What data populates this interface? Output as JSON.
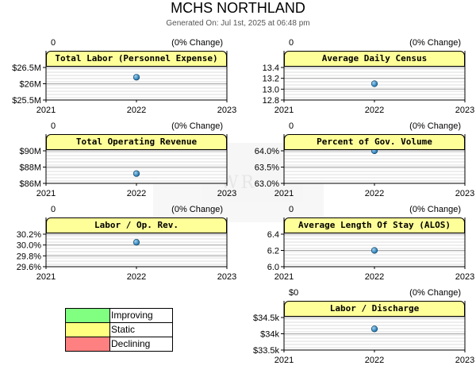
{
  "header": {
    "title": "MCHS NORTHLAND",
    "subtitle": "Generated On: Jul 1st, 2025 at 06:48 pm"
  },
  "watermark": {
    "text": "WR"
  },
  "colors": {
    "title_fill": "#ffff99",
    "point": "#1a6fa8",
    "grid": "#aaaaaa",
    "improving": "#80ff80",
    "static": "#ffff80",
    "declining": "#ff8080"
  },
  "legend": [
    {
      "label": "Improving",
      "color": "#80ff80"
    },
    {
      "label": "Static",
      "color": "#ffff80"
    },
    {
      "label": "Declining",
      "color": "#ff8080"
    }
  ],
  "chart_data": [
    {
      "type": "scatter",
      "title": "Total Labor (Personnel Expense)",
      "change_value": "0",
      "change_text": "(0% Change)",
      "x_ticks": [
        "2021",
        "2022",
        "2023"
      ],
      "x": [
        2022
      ],
      "y": [
        26200000
      ],
      "ylim": [
        25500000,
        26500000
      ],
      "y_ticks": [
        25500000,
        26000000,
        26500000
      ],
      "y_tick_labels": [
        "$25.5M",
        "$26M",
        "$26.5M"
      ],
      "grid": true,
      "status": "Static"
    },
    {
      "type": "scatter",
      "title": "Average Daily Census",
      "change_value": "0",
      "change_text": "(0% Change)",
      "x_ticks": [
        "2021",
        "2022",
        "2023"
      ],
      "x": [
        2022
      ],
      "y": [
        13.1
      ],
      "ylim": [
        12.8,
        13.4
      ],
      "y_ticks": [
        12.8,
        13.0,
        13.2,
        13.4
      ],
      "y_tick_labels": [
        "12.8",
        "13.0",
        "13.2",
        "13.4"
      ],
      "grid": true,
      "status": "Static"
    },
    {
      "type": "scatter",
      "title": "Total Operating Revenue",
      "change_value": "0",
      "change_text": "(0% Change)",
      "x_ticks": [
        "2021",
        "2022",
        "2023"
      ],
      "x": [
        2022
      ],
      "y": [
        87200000
      ],
      "ylim": [
        86000000,
        90000000
      ],
      "y_ticks": [
        86000000,
        88000000,
        90000000
      ],
      "y_tick_labels": [
        "$86M",
        "$88M",
        "$90M"
      ],
      "grid": true,
      "status": "Static"
    },
    {
      "type": "scatter",
      "title": "Percent of Gov. Volume",
      "change_value": "0",
      "change_text": "(0% Change)",
      "x_ticks": [
        "2021",
        "2022",
        "2023"
      ],
      "x": [
        2022
      ],
      "y": [
        64.0
      ],
      "ylim": [
        63.0,
        64.0
      ],
      "y_ticks": [
        63.0,
        63.5,
        64.0
      ],
      "y_tick_labels": [
        "63.0%",
        "63.5%",
        "64.0%"
      ],
      "grid": true,
      "status": "Static"
    },
    {
      "type": "scatter",
      "title": "Labor / Op. Rev.",
      "change_value": "0",
      "change_text": "(0% Change)",
      "x_ticks": [
        "2021",
        "2022",
        "2023"
      ],
      "x": [
        2022
      ],
      "y": [
        30.05
      ],
      "ylim": [
        29.6,
        30.2
      ],
      "y_ticks": [
        29.6,
        29.8,
        30.0,
        30.2
      ],
      "y_tick_labels": [
        "29.6%",
        "29.8%",
        "30.0%",
        "30.2%"
      ],
      "grid": true,
      "status": "Static"
    },
    {
      "type": "scatter",
      "title": "Average Length Of Stay (ALOS)",
      "change_value": "0",
      "change_text": "(0% Change)",
      "x_ticks": [
        "2021",
        "2022",
        "2023"
      ],
      "x": [
        2022
      ],
      "y": [
        6.2
      ],
      "ylim": [
        6.0,
        6.4
      ],
      "y_ticks": [
        6.0,
        6.2,
        6.4
      ],
      "y_tick_labels": [
        "6.0",
        "6.2",
        "6.4"
      ],
      "grid": true,
      "status": "Static"
    },
    {
      "type": "scatter",
      "title": "Labor / Discharge",
      "change_value": "$0",
      "change_text": "(0% Change)",
      "x_ticks": [
        "2021",
        "2022",
        "2023"
      ],
      "x": [
        2022
      ],
      "y": [
        34150
      ],
      "ylim": [
        33500,
        34500
      ],
      "y_ticks": [
        33500,
        34000,
        34500
      ],
      "y_tick_labels": [
        "$33.5k",
        "$34k",
        "$34.5k"
      ],
      "grid": true,
      "status": "Static"
    }
  ]
}
